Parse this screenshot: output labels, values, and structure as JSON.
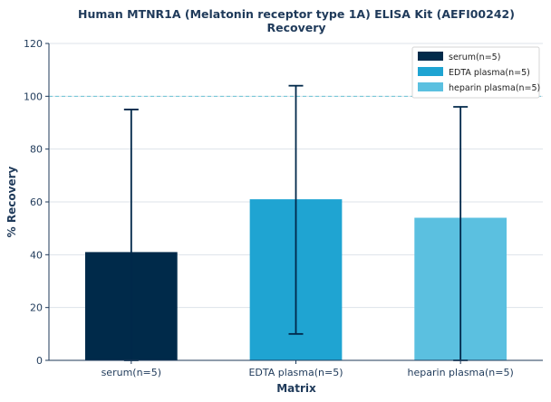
{
  "chart_data": {
    "type": "bar",
    "title": "Human MTNR1A (Melatonin receptor type 1A) ELISA Kit (AEFI00242)",
    "subtitle": "Recovery",
    "xlabel": "Matrix",
    "ylabel": "% Recovery",
    "ylim": [
      0,
      120
    ],
    "yticks": [
      0,
      20,
      40,
      60,
      80,
      100,
      120
    ],
    "grid": true,
    "reference_line": 100,
    "legend_position": "top-right",
    "categories": [
      "serum(n=5)",
      "EDTA plasma(n=5)",
      "heparin plasma(n=5)"
    ],
    "series": [
      {
        "name": "serum(n=5)",
        "category": "serum(n=5)",
        "value": 41,
        "err_low": 0,
        "err_high": 95,
        "color": "#002a4a"
      },
      {
        "name": "EDTA plasma(n=5)",
        "category": "EDTA plasma(n=5)",
        "value": 61,
        "err_low": 10,
        "err_high": 104,
        "color": "#1fa4d2"
      },
      {
        "name": "heparin plasma(n=5)",
        "category": "heparin plasma(n=5)",
        "value": 54,
        "err_low": 0,
        "err_high": 96,
        "color": "#5bc0e0"
      }
    ],
    "colors": {
      "axis": "#1f3a5a",
      "grid": "#dde3ea",
      "reference": "#6cc3d5",
      "errorbar": "#00284a"
    }
  }
}
